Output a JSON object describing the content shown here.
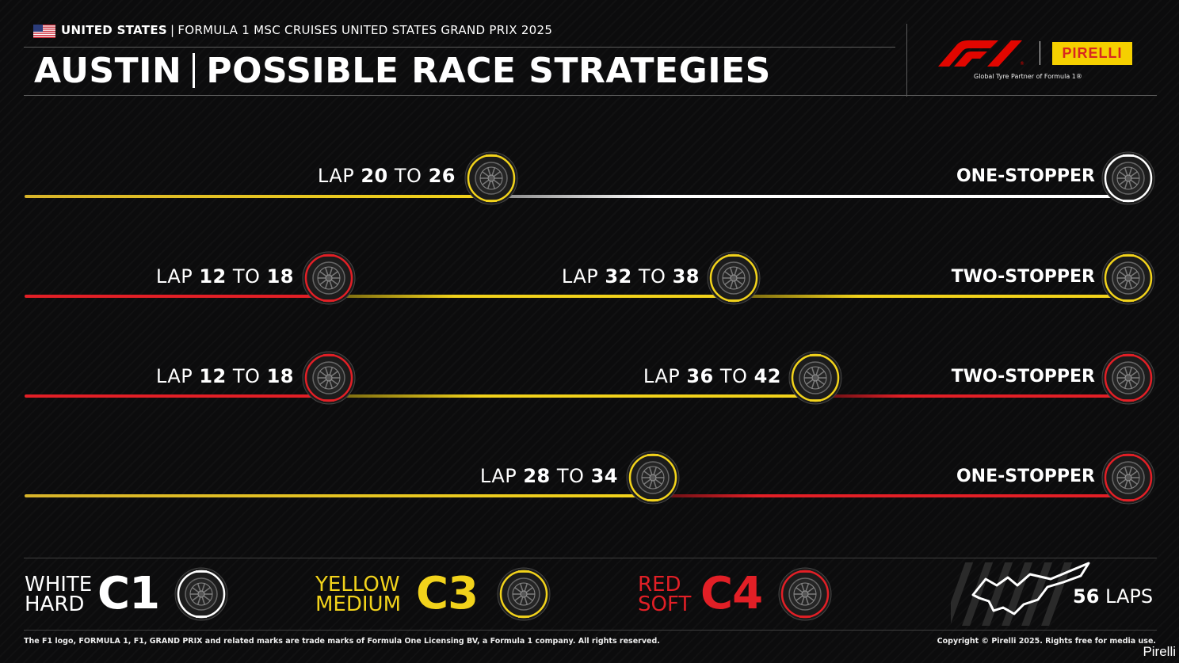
{
  "header": {
    "country": "UNITED STATES",
    "event": "FORMULA 1 MSC CRUISES UNITED STATES GRAND PRIX 2025",
    "city": "AUSTIN",
    "title": "POSSIBLE RACE STRATEGIES",
    "partner": "Global Tyre Partner of Formula 1®",
    "pirelli_logo": "PIRELLI",
    "f1_logo": "F1"
  },
  "strategies": [
    {
      "name": "ONE-STOPPER",
      "compounds": [
        "medium",
        "hard"
      ],
      "stops": [
        {
          "prefix": "LAP",
          "from": "20",
          "to_word": "TO",
          "to": "26"
        }
      ]
    },
    {
      "name": "TWO-STOPPER",
      "compounds": [
        "soft",
        "medium",
        "medium"
      ],
      "stops": [
        {
          "prefix": "LAP",
          "from": "12",
          "to_word": "TO",
          "to": "18"
        },
        {
          "prefix": "LAP",
          "from": "32",
          "to_word": "TO",
          "to": "38"
        }
      ]
    },
    {
      "name": "TWO-STOPPER",
      "compounds": [
        "soft",
        "medium",
        "soft"
      ],
      "stops": [
        {
          "prefix": "LAP",
          "from": "12",
          "to_word": "TO",
          "to": "18"
        },
        {
          "prefix": "LAP",
          "from": "36",
          "to_word": "TO",
          "to": "42"
        }
      ]
    },
    {
      "name": "ONE-STOPPER",
      "compounds": [
        "medium",
        "soft"
      ],
      "stops": [
        {
          "prefix": "LAP",
          "from": "28",
          "to_word": "TO",
          "to": "34"
        }
      ]
    }
  ],
  "legend": [
    {
      "color_word": "WHITE",
      "type": "HARD",
      "code": "C1",
      "color": "#ffffff"
    },
    {
      "color_word": "YELLOW",
      "type": "MEDIUM",
      "code": "C3",
      "color": "#f2d31b"
    },
    {
      "color_word": "RED",
      "type": "SOFT",
      "code": "C4",
      "color": "#e21f26"
    }
  ],
  "race": {
    "laps_number": "56",
    "laps_label": "LAPS"
  },
  "footer": {
    "left": "The F1 logo, FORMULA 1, F1, GRAND PRIX and related marks are trade marks of Formula One Licensing BV, a Formula 1 company. All rights reserved.",
    "right": "Copyright © Pirelli 2025. Rights free for media use.",
    "credit": "Pirelli"
  },
  "colors": {
    "hard": "#ffffff",
    "medium": "#f2d31b",
    "soft": "#e21f26",
    "background": "#0c0c0d"
  },
  "icons": [
    "us-flag-icon",
    "tyre-icon",
    "circuit-map-icon"
  ]
}
